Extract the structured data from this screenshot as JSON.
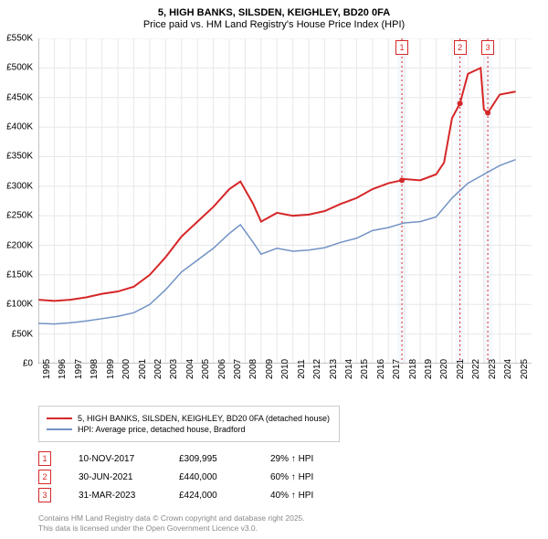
{
  "title": {
    "line1": "5, HIGH BANKS, SILSDEN, KEIGHLEY, BD20 0FA",
    "line2": "Price paid vs. HM Land Registry's House Price Index (HPI)"
  },
  "chart": {
    "type": "line",
    "background_color": "#ffffff",
    "grid_color": "#e8e8e8",
    "axis_color": "#888888",
    "x_range": [
      1995,
      2026
    ],
    "y_range": [
      0,
      550000
    ],
    "y_ticks": [
      0,
      50000,
      100000,
      150000,
      200000,
      250000,
      300000,
      350000,
      400000,
      450000,
      500000,
      550000
    ],
    "y_tick_labels": [
      "£0",
      "£50K",
      "£100K",
      "£150K",
      "£200K",
      "£250K",
      "£300K",
      "£350K",
      "£400K",
      "£450K",
      "£500K",
      "£550K"
    ],
    "x_ticks": [
      1995,
      1996,
      1997,
      1998,
      1999,
      2000,
      2001,
      2002,
      2003,
      2004,
      2005,
      2006,
      2007,
      2008,
      2009,
      2010,
      2011,
      2012,
      2013,
      2014,
      2015,
      2016,
      2017,
      2018,
      2019,
      2020,
      2021,
      2022,
      2023,
      2024,
      2025
    ],
    "sale_bands": [
      {
        "x": 2017.85,
        "width": 0.6,
        "color": "#f5f8fc"
      },
      {
        "x": 2021.5,
        "width": 0.6,
        "color": "#f5f8fc"
      },
      {
        "x": 2023.25,
        "width": 0.6,
        "color": "#f5f8fc"
      }
    ],
    "series": [
      {
        "name": "price_paid",
        "label": "5, HIGH BANKS, SILSDEN, KEIGHLEY, BD20 0FA (detached house)",
        "color": "#d62728",
        "line_width": 2,
        "data": [
          [
            1995,
            108000
          ],
          [
            1996,
            106000
          ],
          [
            1997,
            108000
          ],
          [
            1998,
            112000
          ],
          [
            1999,
            118000
          ],
          [
            2000,
            122000
          ],
          [
            2001,
            130000
          ],
          [
            2002,
            150000
          ],
          [
            2003,
            180000
          ],
          [
            2004,
            215000
          ],
          [
            2005,
            240000
          ],
          [
            2006,
            265000
          ],
          [
            2007,
            295000
          ],
          [
            2007.7,
            308000
          ],
          [
            2008.5,
            270000
          ],
          [
            2009,
            240000
          ],
          [
            2010,
            255000
          ],
          [
            2011,
            250000
          ],
          [
            2012,
            252000
          ],
          [
            2013,
            258000
          ],
          [
            2014,
            270000
          ],
          [
            2015,
            280000
          ],
          [
            2016,
            295000
          ],
          [
            2017,
            305000
          ],
          [
            2017.85,
            309995
          ],
          [
            2018,
            312000
          ],
          [
            2019,
            310000
          ],
          [
            2020,
            320000
          ],
          [
            2020.5,
            340000
          ],
          [
            2021,
            415000
          ],
          [
            2021.5,
            440000
          ],
          [
            2022,
            490000
          ],
          [
            2022.8,
            500000
          ],
          [
            2023,
            430000
          ],
          [
            2023.25,
            424000
          ],
          [
            2024,
            455000
          ],
          [
            2025,
            460000
          ]
        ]
      },
      {
        "name": "hpi",
        "label": "HPI: Average price, detached house, Bradford",
        "color": "#7293c4",
        "line_width": 1.5,
        "data": [
          [
            1995,
            68000
          ],
          [
            1996,
            67000
          ],
          [
            1997,
            69000
          ],
          [
            1998,
            72000
          ],
          [
            1999,
            76000
          ],
          [
            2000,
            80000
          ],
          [
            2001,
            86000
          ],
          [
            2002,
            100000
          ],
          [
            2003,
            125000
          ],
          [
            2004,
            155000
          ],
          [
            2005,
            175000
          ],
          [
            2006,
            195000
          ],
          [
            2007,
            220000
          ],
          [
            2007.7,
            235000
          ],
          [
            2008.5,
            205000
          ],
          [
            2009,
            185000
          ],
          [
            2010,
            195000
          ],
          [
            2011,
            190000
          ],
          [
            2012,
            192000
          ],
          [
            2013,
            196000
          ],
          [
            2014,
            205000
          ],
          [
            2015,
            212000
          ],
          [
            2016,
            225000
          ],
          [
            2017,
            230000
          ],
          [
            2018,
            238000
          ],
          [
            2019,
            240000
          ],
          [
            2020,
            248000
          ],
          [
            2021,
            280000
          ],
          [
            2022,
            305000
          ],
          [
            2023,
            320000
          ],
          [
            2024,
            335000
          ],
          [
            2025,
            345000
          ]
        ]
      }
    ],
    "markers": [
      {
        "num": "1",
        "x": 2017.85,
        "color": "#d62728"
      },
      {
        "num": "2",
        "x": 2021.5,
        "color": "#d62728"
      },
      {
        "num": "3",
        "x": 2023.25,
        "color": "#d62728"
      }
    ]
  },
  "legend": {
    "items": [
      {
        "color": "#d62728",
        "label": "5, HIGH BANKS, SILSDEN, KEIGHLEY, BD20 0FA (detached house)"
      },
      {
        "color": "#7293c4",
        "label": "HPI: Average price, detached house, Bradford"
      }
    ]
  },
  "sales": [
    {
      "num": "1",
      "color": "#d62728",
      "date": "10-NOV-2017",
      "price": "£309,995",
      "hpi": "29% ↑ HPI"
    },
    {
      "num": "2",
      "color": "#d62728",
      "date": "30-JUN-2021",
      "price": "£440,000",
      "hpi": "60% ↑ HPI"
    },
    {
      "num": "3",
      "color": "#d62728",
      "date": "31-MAR-2023",
      "price": "£424,000",
      "hpi": "40% ↑ HPI"
    }
  ],
  "footer": {
    "line1": "Contains HM Land Registry data © Crown copyright and database right 2025.",
    "line2": "This data is licensed under the Open Government Licence v3.0."
  }
}
